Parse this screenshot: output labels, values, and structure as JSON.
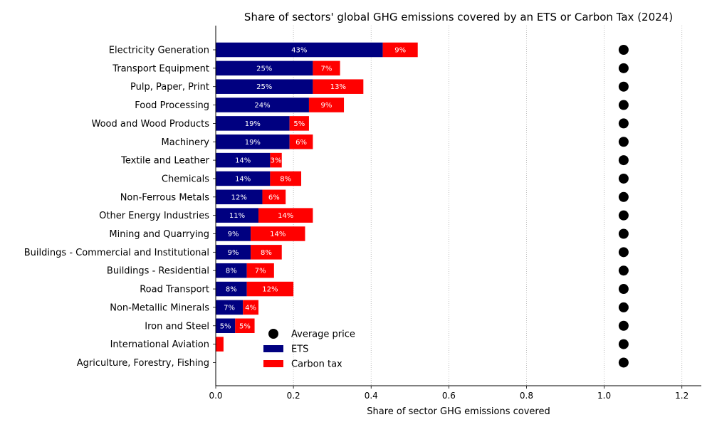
{
  "chart_data": {
    "type": "bar",
    "orientation": "horizontal",
    "stacked": true,
    "title": "Share of sectors' global GHG emissions covered by an ETS or Carbon Tax (2024)",
    "xlabel": "Share of sector GHG emissions covered",
    "ylabel": "",
    "xlim": [
      0,
      1.25
    ],
    "xticks": [
      0.0,
      0.2,
      0.4,
      0.6,
      0.8,
      1.0,
      1.2
    ],
    "xtick_labels": [
      "0.0",
      "0.2",
      "0.4",
      "0.6",
      "0.8",
      "1.0",
      "1.2"
    ],
    "grid": "vertical dotted",
    "legend_position": "lower-center",
    "categories": [
      "Electricity Generation",
      "Transport Equipment",
      "Pulp, Paper, Print",
      "Food Processing",
      "Wood and Wood Products",
      "Machinery",
      "Textile and Leather",
      "Chemicals",
      "Non-Ferrous Metals",
      "Other Energy Industries",
      "Mining and Quarrying",
      "Buildings - Commercial and Institutional",
      "Buildings - Residential",
      "Road Transport",
      "Non-Metallic Minerals",
      "Iron and Steel",
      "International Aviation",
      "Agriculture, Forestry, Fishing"
    ],
    "series": [
      {
        "name": "ETS",
        "color": "#000080",
        "values": [
          0.43,
          0.25,
          0.25,
          0.24,
          0.19,
          0.19,
          0.14,
          0.14,
          0.12,
          0.11,
          0.09,
          0.09,
          0.08,
          0.08,
          0.07,
          0.05,
          0.0,
          0.0
        ],
        "labels": [
          "43%",
          "25%",
          "25%",
          "24%",
          "19%",
          "19%",
          "14%",
          "14%",
          "12%",
          "11%",
          "9%",
          "9%",
          "8%",
          "8%",
          "7%",
          "5%",
          "",
          ""
        ]
      },
      {
        "name": "Carbon tax",
        "color": "#ff0000",
        "values": [
          0.09,
          0.07,
          0.13,
          0.09,
          0.05,
          0.06,
          0.03,
          0.08,
          0.06,
          0.14,
          0.14,
          0.08,
          0.07,
          0.12,
          0.04,
          0.05,
          0.02,
          0.0
        ],
        "labels": [
          "9%",
          "7%",
          "13%",
          "9%",
          "5%",
          "6%",
          "3%",
          "8%",
          "6%",
          "14%",
          "14%",
          "8%",
          "7%",
          "12%",
          "4%",
          "5%",
          "",
          ""
        ]
      },
      {
        "name": "Average price",
        "color": "#000000",
        "marker": "circle",
        "x_positions": [
          1.05,
          1.05,
          1.05,
          1.05,
          1.05,
          1.05,
          1.05,
          1.05,
          1.05,
          1.05,
          1.05,
          1.05,
          1.05,
          1.05,
          1.05,
          1.05,
          1.05,
          1.05
        ]
      }
    ]
  }
}
